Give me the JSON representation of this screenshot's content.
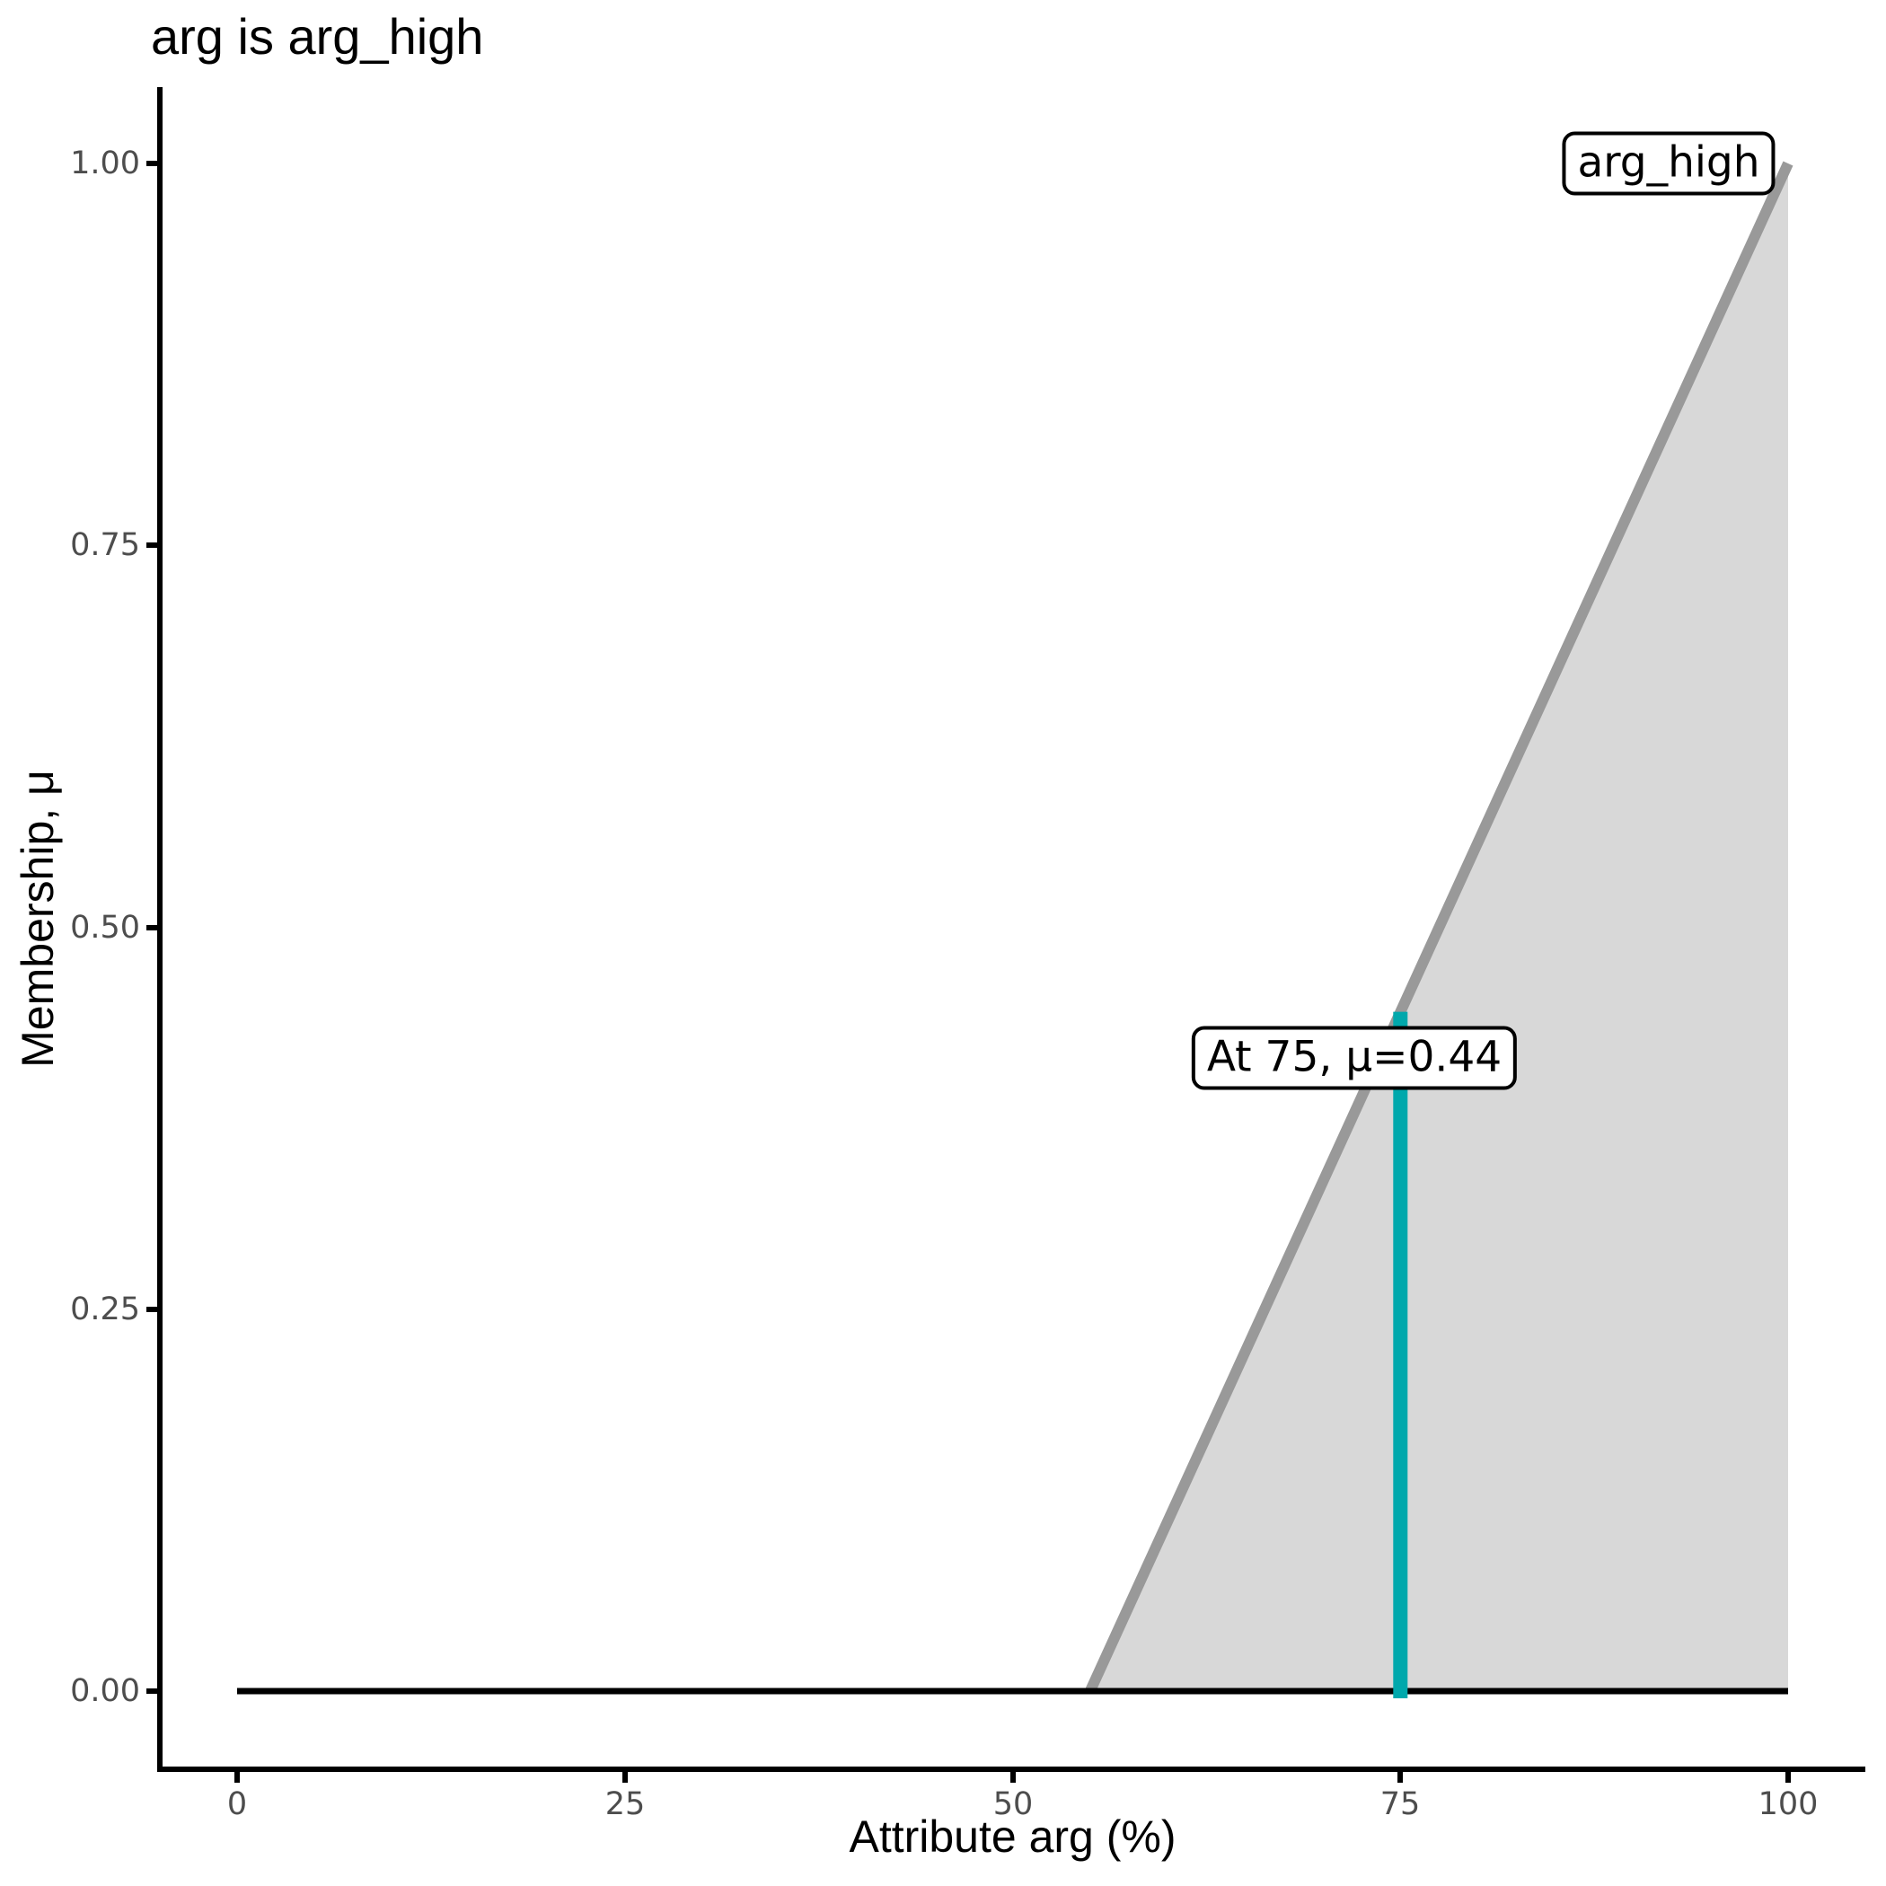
{
  "title": "arg is arg_high",
  "x_axis": {
    "label": "Attribute arg (%)",
    "tick_labels": [
      "0",
      "25",
      "50",
      "75",
      "100"
    ]
  },
  "y_axis": {
    "label": "Membership, μ",
    "tick_labels": [
      "0.00",
      "0.25",
      "0.50",
      "0.75",
      "1.00"
    ]
  },
  "annotations": {
    "set_label": "arg_high",
    "evaluation_label": "At 75, μ=0.44"
  },
  "colors": {
    "membership_line": "#999999",
    "fill": "#D8D8D8",
    "baseline": "#000000",
    "evaluation_line": "#00A8AC",
    "axis_line": "#000000",
    "tick_text": "#4D4D4D"
  },
  "chart_data": {
    "type": "area",
    "title": "arg is arg_high",
    "xlabel": "Attribute arg (%)",
    "ylabel": "Membership, μ",
    "xlim": [
      0,
      100
    ],
    "ylim": [
      0,
      1
    ],
    "x_ticks": [
      0,
      25,
      50,
      75,
      100
    ],
    "y_ticks": [
      0.0,
      0.25,
      0.5,
      0.75,
      1.0
    ],
    "grid": false,
    "legend": "none",
    "series": [
      {
        "name": "arg_high shaded area",
        "role": "fill",
        "x": [
          55,
          100,
          100
        ],
        "mu": [
          0,
          1,
          0
        ],
        "color": "#D8D8D8"
      },
      {
        "name": "arg_high membership function",
        "role": "membership-line",
        "x": [
          55,
          100
        ],
        "mu": [
          0,
          1
        ],
        "color": "#999999"
      },
      {
        "name": "zero membership baseline",
        "role": "baseline",
        "x": [
          0,
          100
        ],
        "mu": [
          0,
          0
        ],
        "color": "#000000"
      },
      {
        "name": "evaluation line at arg=75",
        "role": "marker",
        "x": [
          75,
          75
        ],
        "mu": [
          0,
          0.44
        ],
        "color": "#00A8AC"
      }
    ],
    "annotations": [
      {
        "text": "arg_high",
        "x": 92,
        "mu": 1.0
      },
      {
        "text": "At 75, μ=0.44",
        "x": 72,
        "mu": 0.41
      }
    ]
  }
}
